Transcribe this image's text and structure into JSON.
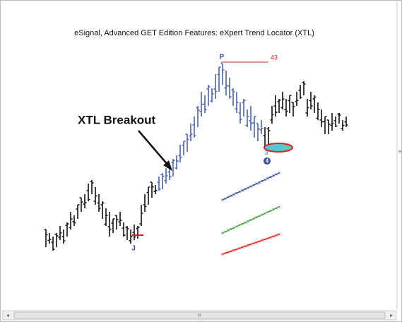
{
  "header": {
    "title": "eSignal, Advanced GET Edition Features: eXpert Trend Locator (XTL)"
  },
  "annotations": {
    "breakout": "XTL Breakout",
    "peak": "P",
    "peak_count": "43",
    "low": "J",
    "wave_small": "3",
    "wave": "4"
  },
  "scrollbar": {
    "grip": "III"
  }
}
